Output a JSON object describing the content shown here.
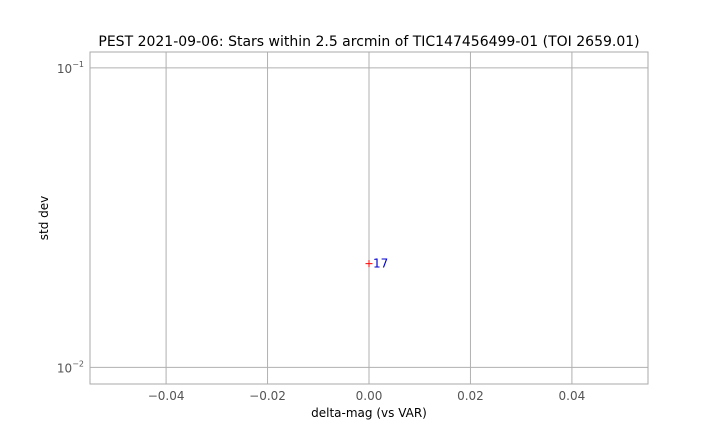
{
  "chart_data": {
    "type": "scatter",
    "title": "PEST 2021-09-06: Stars within 2.5 arcmin of TIC147456499-01 (TOI 2659.01)",
    "xlabel": "delta-mag (vs VAR)",
    "ylabel": "std dev",
    "xlim": [
      -0.055,
      0.055
    ],
    "ylim": [
      0.0088,
      0.113
    ],
    "yscale": "log",
    "grid": true,
    "x_ticks": [
      {
        "value": -0.04,
        "label": "−0.04"
      },
      {
        "value": -0.02,
        "label": "−0.02"
      },
      {
        "value": 0.0,
        "label": "0.00"
      },
      {
        "value": 0.02,
        "label": "0.02"
      },
      {
        "value": 0.04,
        "label": "0.04"
      }
    ],
    "y_ticks": [
      {
        "value": 0.01,
        "base": "10",
        "exp": "−2"
      },
      {
        "value": 0.1,
        "base": "10",
        "exp": "−1"
      }
    ],
    "points": [
      {
        "x": 0.0,
        "y": 0.0222,
        "label": "17",
        "marker": "+",
        "marker_color": "#ff0000",
        "label_color": "#0000cc"
      }
    ]
  }
}
